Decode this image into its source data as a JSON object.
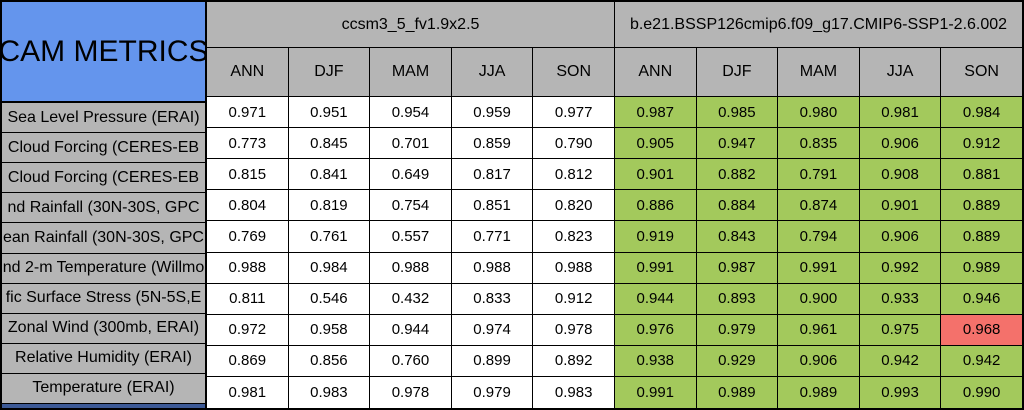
{
  "title": "CAM METRICS",
  "colors": {
    "header_gray": "#b5b5b5",
    "title_blue": "#6495ed",
    "good_green": "#a3c95c",
    "bad_red": "#f4716b",
    "plain_white": "#ffffff",
    "grid_border": "#000000",
    "next_section_blue": "#3d5a96"
  },
  "model_groups": [
    {
      "name": "ccsm3_5_fv1.9x2.5",
      "seasons": [
        "ANN",
        "DJF",
        "MAM",
        "JJA",
        "SON"
      ]
    },
    {
      "name": "b.e21.BSSP126cmip6.f09_g17.CMIP6-SSP1-2.6.002",
      "seasons": [
        "ANN",
        "DJF",
        "MAM",
        "JJA",
        "SON"
      ]
    }
  ],
  "rows": [
    {
      "label": "Sea Level Pressure (ERAI)",
      "group1": [
        "0.971",
        "0.951",
        "0.954",
        "0.959",
        "0.977"
      ],
      "group2": [
        "0.987",
        "0.985",
        "0.980",
        "0.981",
        "0.984"
      ]
    },
    {
      "label": "Cloud Forcing (CERES-EB",
      "group1": [
        "0.773",
        "0.845",
        "0.701",
        "0.859",
        "0.790"
      ],
      "group2": [
        "0.905",
        "0.947",
        "0.835",
        "0.906",
        "0.912"
      ]
    },
    {
      "label": "Cloud Forcing (CERES-EB",
      "group1": [
        "0.815",
        "0.841",
        "0.649",
        "0.817",
        "0.812"
      ],
      "group2": [
        "0.901",
        "0.882",
        "0.791",
        "0.908",
        "0.881"
      ]
    },
    {
      "label": "nd Rainfall (30N-30S, GPC",
      "group1": [
        "0.804",
        "0.819",
        "0.754",
        "0.851",
        "0.820"
      ],
      "group2": [
        "0.886",
        "0.884",
        "0.874",
        "0.901",
        "0.889"
      ]
    },
    {
      "label": "ean Rainfall (30N-30S, GPC",
      "group1": [
        "0.769",
        "0.761",
        "0.557",
        "0.771",
        "0.823"
      ],
      "group2": [
        "0.919",
        "0.843",
        "0.794",
        "0.906",
        "0.889"
      ]
    },
    {
      "label": "nd 2-m Temperature (Willmo",
      "group1": [
        "0.988",
        "0.984",
        "0.988",
        "0.988",
        "0.988"
      ],
      "group2": [
        "0.991",
        "0.987",
        "0.991",
        "0.992",
        "0.989"
      ]
    },
    {
      "label": "fic Surface Stress (5N-5S,E",
      "group1": [
        "0.811",
        "0.546",
        "0.432",
        "0.833",
        "0.912"
      ],
      "group2": [
        "0.944",
        "0.893",
        "0.900",
        "0.933",
        "0.946"
      ]
    },
    {
      "label": "Zonal Wind (300mb, ERAI)",
      "group1": [
        "0.972",
        "0.958",
        "0.944",
        "0.974",
        "0.978"
      ],
      "group2": [
        "0.976",
        "0.979",
        "0.961",
        "0.975",
        "0.968"
      ]
    },
    {
      "label": "Relative Humidity (ERAI)",
      "group1": [
        "0.869",
        "0.856",
        "0.760",
        "0.899",
        "0.892"
      ],
      "group2": [
        "0.938",
        "0.929",
        "0.906",
        "0.942",
        "0.942"
      ]
    },
    {
      "label": "Temperature (ERAI)",
      "group1": [
        "0.981",
        "0.983",
        "0.978",
        "0.979",
        "0.983"
      ],
      "group2": [
        "0.991",
        "0.989",
        "0.989",
        "0.993",
        "0.990"
      ]
    }
  ],
  "highlight_cell": {
    "row_index": 7,
    "group": 2,
    "season_index": 4,
    "value": "0.968",
    "color": "#f4716b"
  },
  "chart_data": {
    "type": "table",
    "title": "CAM METRICS",
    "column_groups": [
      "ccsm3_5_fv1.9x2.5",
      "b.e21.BSSP126cmip6.f09_g17.CMIP6-SSP1-2.6.002"
    ],
    "columns": [
      "ANN",
      "DJF",
      "MAM",
      "JJA",
      "SON",
      "ANN",
      "DJF",
      "MAM",
      "JJA",
      "SON"
    ],
    "row_labels": [
      "Sea Level Pressure (ERAI)",
      "Cloud Forcing (CERES-EB",
      "Cloud Forcing (CERES-EB",
      "nd Rainfall (30N-30S, GPC",
      "ean Rainfall (30N-30S, GPC",
      "nd 2-m Temperature (Willmo",
      "fic Surface Stress (5N-5S,E",
      "Zonal Wind (300mb, ERAI)",
      "Relative Humidity (ERAI)",
      "Temperature (ERAI)"
    ],
    "values": [
      [
        0.971,
        0.951,
        0.954,
        0.959,
        0.977,
        0.987,
        0.985,
        0.98,
        0.981,
        0.984
      ],
      [
        0.773,
        0.845,
        0.701,
        0.859,
        0.79,
        0.905,
        0.947,
        0.835,
        0.906,
        0.912
      ],
      [
        0.815,
        0.841,
        0.649,
        0.817,
        0.812,
        0.901,
        0.882,
        0.791,
        0.908,
        0.881
      ],
      [
        0.804,
        0.819,
        0.754,
        0.851,
        0.82,
        0.886,
        0.884,
        0.874,
        0.901,
        0.889
      ],
      [
        0.769,
        0.761,
        0.557,
        0.771,
        0.823,
        0.919,
        0.843,
        0.794,
        0.906,
        0.889
      ],
      [
        0.988,
        0.984,
        0.988,
        0.988,
        0.988,
        0.991,
        0.987,
        0.991,
        0.992,
        0.989
      ],
      [
        0.811,
        0.546,
        0.432,
        0.833,
        0.912,
        0.944,
        0.893,
        0.9,
        0.933,
        0.946
      ],
      [
        0.972,
        0.958,
        0.944,
        0.974,
        0.978,
        0.976,
        0.979,
        0.961,
        0.975,
        0.968
      ],
      [
        0.869,
        0.856,
        0.76,
        0.899,
        0.892,
        0.938,
        0.929,
        0.906,
        0.942,
        0.942
      ],
      [
        0.981,
        0.983,
        0.978,
        0.979,
        0.983,
        0.991,
        0.989,
        0.989,
        0.993,
        0.99
      ]
    ],
    "cell_color_legend": {
      "green": "value shaded good (#a3c95c)",
      "red": "value shaded poor (#f4716b)",
      "white": "unshaded reference model"
    },
    "highlight": {
      "row": "Zonal Wind (300mb, ERAI)",
      "column": "SON (group 2)",
      "value": 0.968,
      "color": "red"
    }
  }
}
